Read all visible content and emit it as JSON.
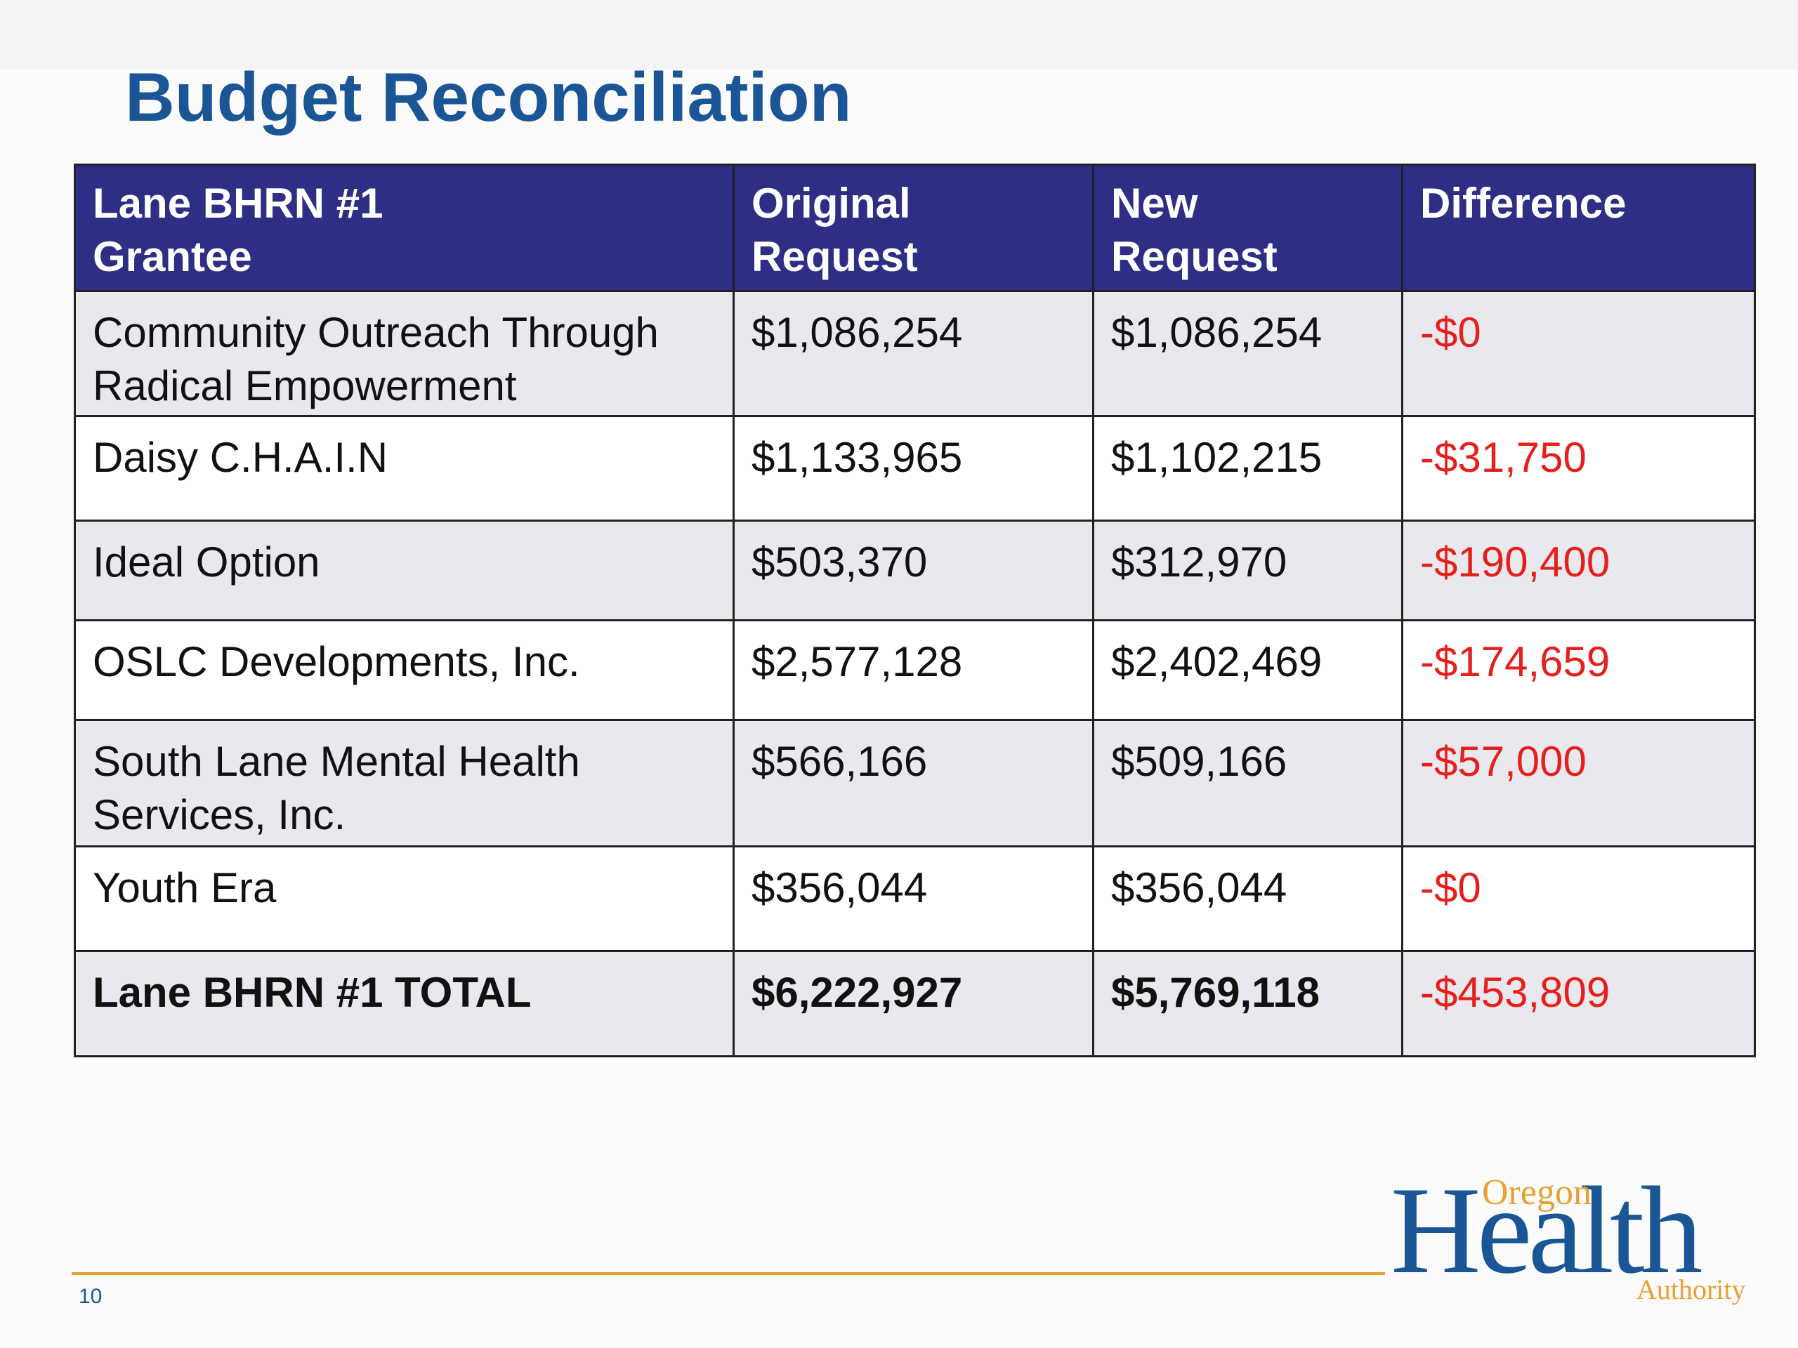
{
  "slide": {
    "title": "Budget Reconciliation",
    "page_number": "10"
  },
  "table": {
    "headers": [
      "Lane BHRN #1\nGrantee",
      "Original\nRequest",
      "New\nRequest",
      "Difference"
    ],
    "rows": [
      {
        "grantee": "Community Outreach Through Radical Empowerment",
        "original": "$1,086,254",
        "new": "$1,086,254",
        "difference": "-$0"
      },
      {
        "grantee": "Daisy C.H.A.I.N",
        "original": "$1,133,965",
        "new": "$1,102,215",
        "difference": "-$31,750"
      },
      {
        "grantee": "Ideal Option",
        "original": "$503,370",
        "new": "$312,970",
        "difference": "-$190,400"
      },
      {
        "grantee": "OSLC Developments, Inc.",
        "original": "$2,577,128",
        "new": "$2,402,469",
        "difference": "-$174,659"
      },
      {
        "grantee": "South Lane Mental Health Services, Inc.",
        "original": "$566,166",
        "new": "$509,166",
        "difference": "-$57,000"
      },
      {
        "grantee": "Youth Era",
        "original": "$356,044",
        "new": "$356,044",
        "difference": "-$0"
      }
    ],
    "total": {
      "grantee": "Lane BHRN #1 TOTAL",
      "original": "$6,222,927",
      "new": "$5,769,118",
      "difference": "-$453,809"
    }
  },
  "logo": {
    "line1": "Oregon",
    "line2": "Health",
    "line3": "Authority"
  },
  "colors": {
    "title": "#1a5595",
    "header_bg": "#2d2e84",
    "negative": "#e5201c",
    "rule": "#e8a030"
  }
}
